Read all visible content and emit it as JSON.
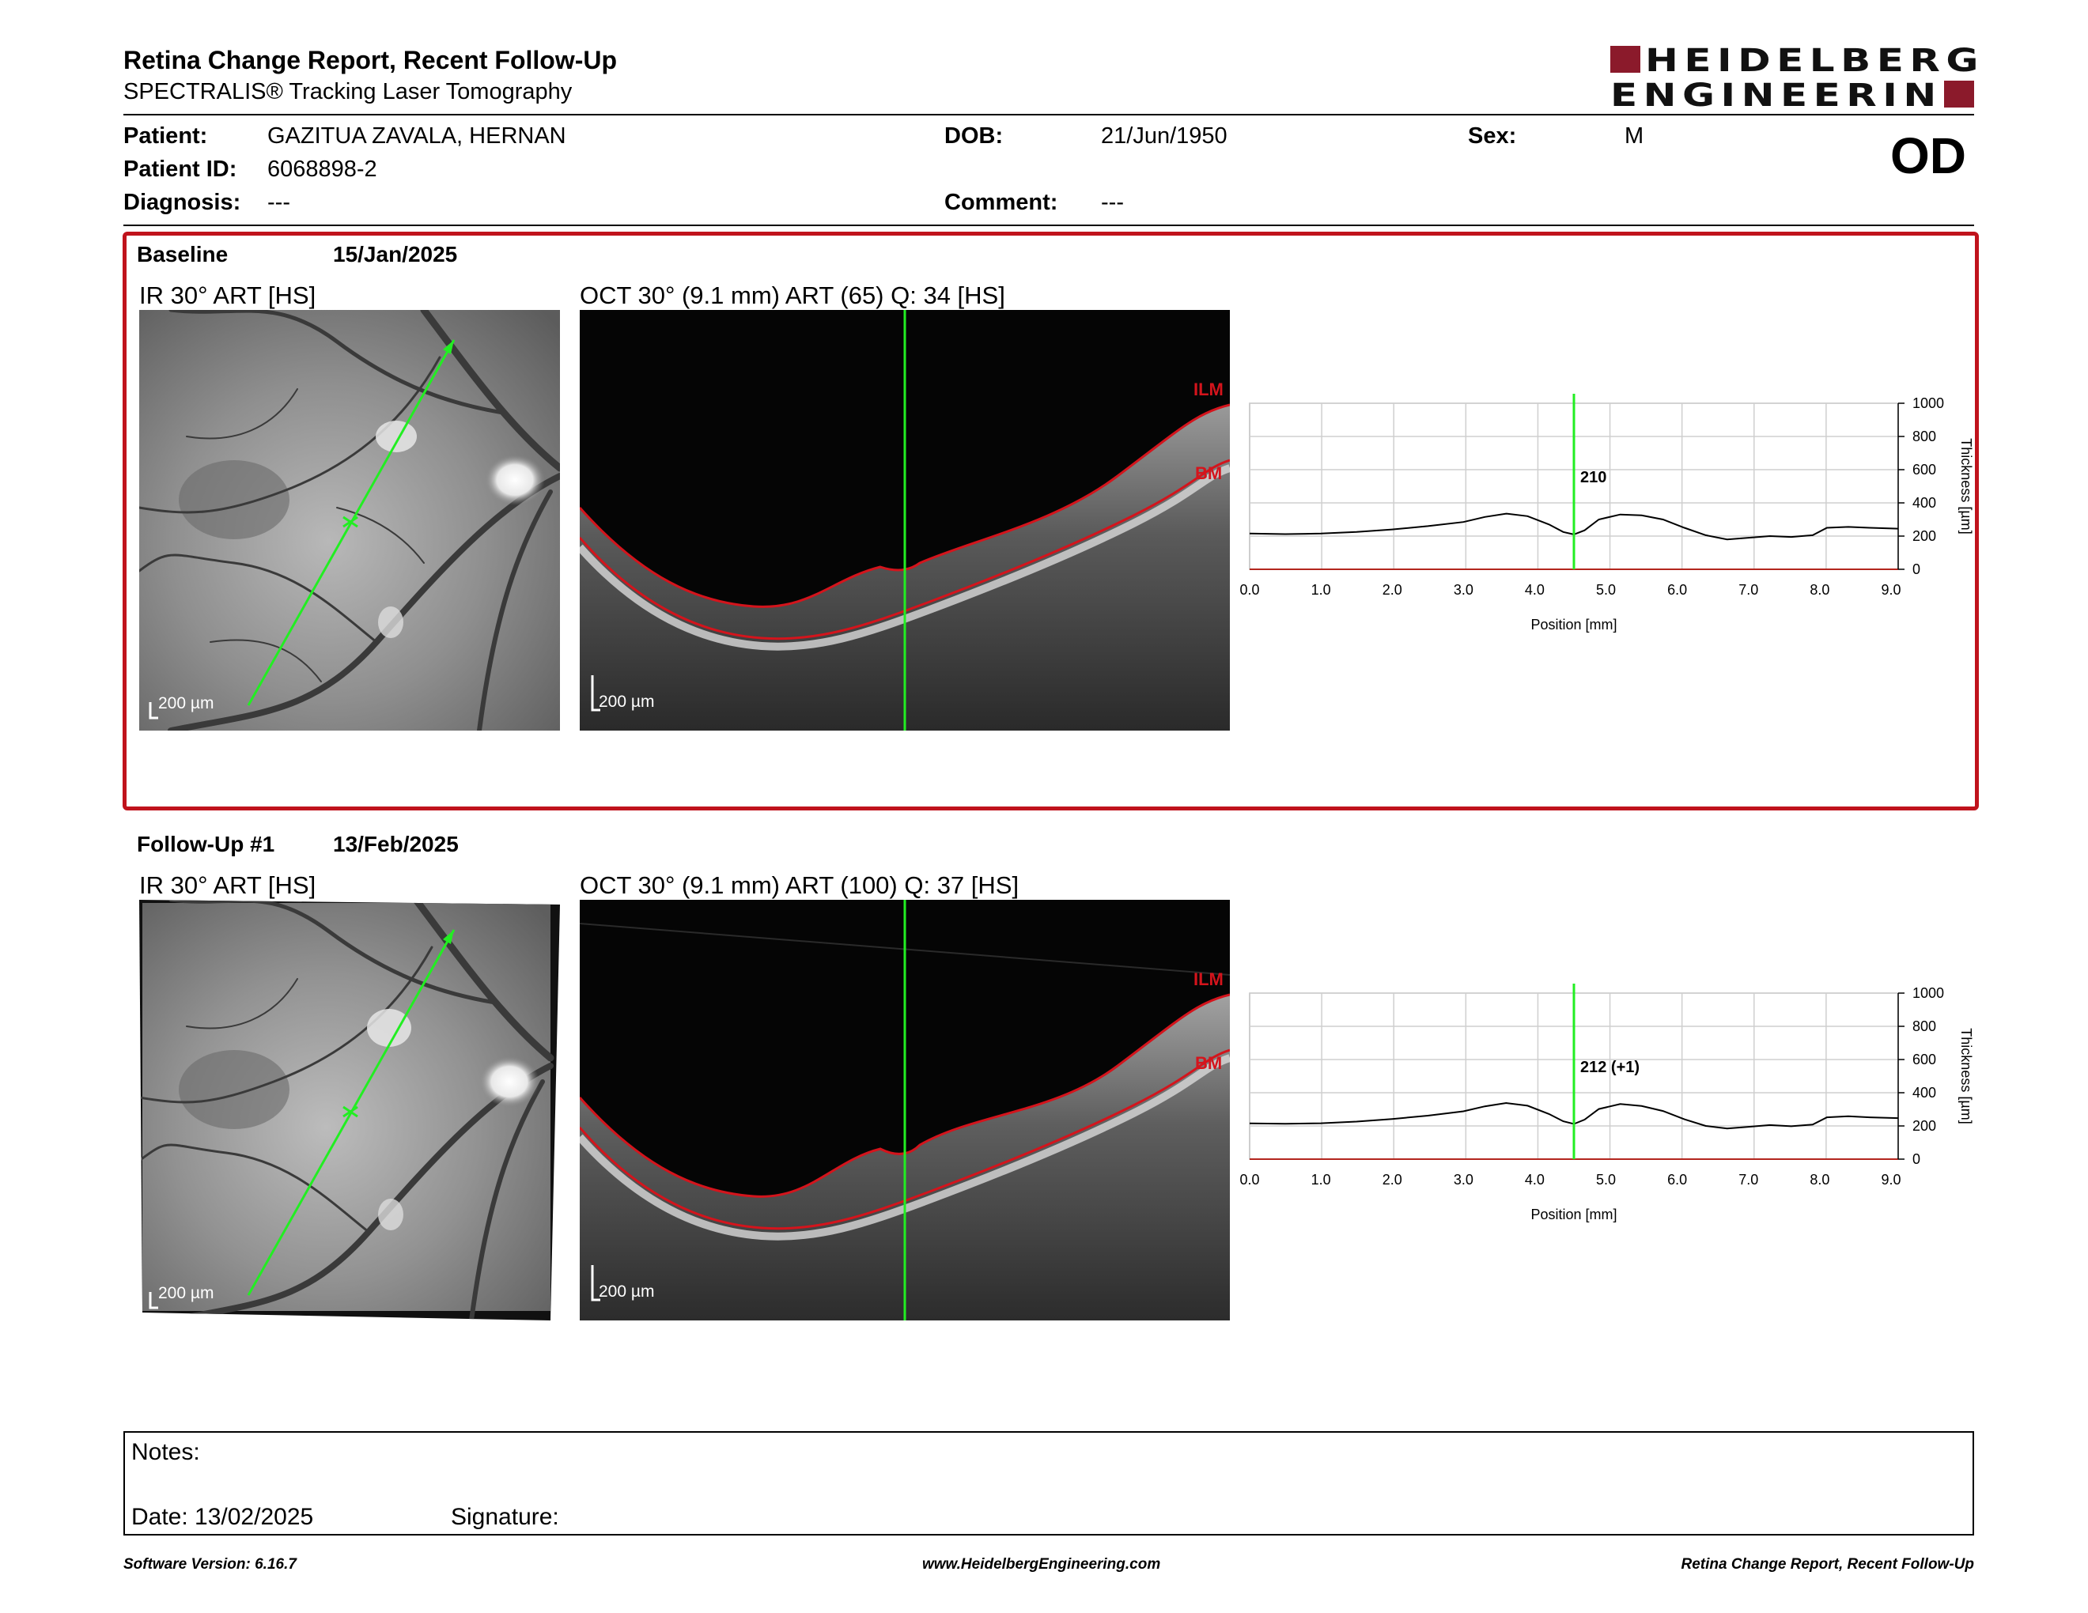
{
  "report": {
    "title": "Retina Change Report, Recent Follow-Up",
    "subtitle": "SPECTRALIS® Tracking Laser Tomography"
  },
  "logo": {
    "line1": "HEIDELBERG",
    "line2": "ENGINEERING",
    "brand_color": "#8b1a2b"
  },
  "patient": {
    "name_label": "Patient:",
    "name": "GAZITUA ZAVALA, HERNAN",
    "id_label": "Patient ID:",
    "id": "6068898-2",
    "diagnosis_label": "Diagnosis:",
    "diagnosis": "---",
    "dob_label": "DOB:",
    "dob": "21/Jun/1950",
    "comment_label": "Comment:",
    "comment": "---",
    "sex_label": "Sex:",
    "sex": "M",
    "eye": "OD"
  },
  "baseline": {
    "label": "Baseline",
    "date": "15/Jan/2025",
    "ir_title": "IR 30° ART [HS]",
    "oct_title": "OCT 30° (9.1 mm) ART (65) Q: 34 [HS]",
    "ir_scale": "200 µm",
    "oct_scale": "200 µm",
    "ilm": "ILM",
    "bm": "BM",
    "cursor_value": "210"
  },
  "followup": {
    "label": "Follow-Up #1",
    "date": "13/Feb/2025",
    "ir_title": "IR 30° ART [HS]",
    "oct_title": "OCT 30° (9.1 mm) ART (100) Q: 37 [HS]",
    "ir_scale": "200 µm",
    "oct_scale": "200 µm",
    "ilm": "ILM",
    "bm": "BM",
    "cursor_value": "212 (+1)"
  },
  "chart_data": [
    {
      "type": "line",
      "title": "",
      "xlabel": "Position [mm]",
      "ylabel": "Thickness [µm]",
      "xlim": [
        0,
        9.1
      ],
      "ylim": [
        0,
        1000
      ],
      "x_ticks": [
        "0.0",
        "1.0",
        "2.0",
        "3.0",
        "4.0",
        "5.0",
        "6.0",
        "7.0",
        "8.0",
        "9.0"
      ],
      "y_ticks": [
        "0",
        "200",
        "400",
        "600",
        "800",
        "1000"
      ],
      "grid": true,
      "cursor_x": 4.55,
      "series": [
        {
          "color": "#000000",
          "x": [
            0,
            0.5,
            1.0,
            1.5,
            2.0,
            2.5,
            3.0,
            3.3,
            3.6,
            3.9,
            4.2,
            4.4,
            4.55,
            4.7,
            4.9,
            5.2,
            5.5,
            5.8,
            6.1,
            6.4,
            6.7,
            7.0,
            7.3,
            7.6,
            7.9,
            8.1,
            8.4,
            8.7,
            9.1
          ],
          "y": [
            215,
            212,
            215,
            225,
            240,
            260,
            285,
            315,
            335,
            320,
            270,
            225,
            210,
            235,
            300,
            330,
            325,
            300,
            250,
            205,
            180,
            190,
            200,
            195,
            205,
            250,
            255,
            250,
            245
          ]
        }
      ]
    },
    {
      "type": "line",
      "title": "",
      "xlabel": "Position [mm]",
      "ylabel": "Thickness [µm]",
      "xlim": [
        0,
        9.1
      ],
      "ylim": [
        0,
        1000
      ],
      "x_ticks": [
        "0.0",
        "1.0",
        "2.0",
        "3.0",
        "4.0",
        "5.0",
        "6.0",
        "7.0",
        "8.0",
        "9.0"
      ],
      "y_ticks": [
        "0",
        "200",
        "400",
        "600",
        "800",
        "1000"
      ],
      "grid": true,
      "cursor_x": 4.55,
      "series": [
        {
          "color": "#000000",
          "x": [
            0,
            0.5,
            1.0,
            1.5,
            2.0,
            2.5,
            3.0,
            3.3,
            3.6,
            3.9,
            4.2,
            4.4,
            4.55,
            4.7,
            4.9,
            5.2,
            5.5,
            5.8,
            6.1,
            6.4,
            6.7,
            7.0,
            7.3,
            7.6,
            7.9,
            8.1,
            8.4,
            8.7,
            9.1
          ],
          "y": [
            215,
            213,
            216,
            226,
            242,
            262,
            288,
            318,
            338,
            322,
            272,
            228,
            212,
            238,
            302,
            332,
            320,
            290,
            240,
            200,
            185,
            195,
            205,
            198,
            208,
            252,
            258,
            252,
            247
          ]
        }
      ]
    }
  ],
  "notes": {
    "notes_label": "Notes:",
    "date_label": "Date: 13/02/2025",
    "signature_label": "Signature:"
  },
  "footer": {
    "software": "Software Version: 6.16.7",
    "website": "www.HeidelbergEngineering.com",
    "report_name": "Retina Change Report, Recent Follow-Up"
  }
}
